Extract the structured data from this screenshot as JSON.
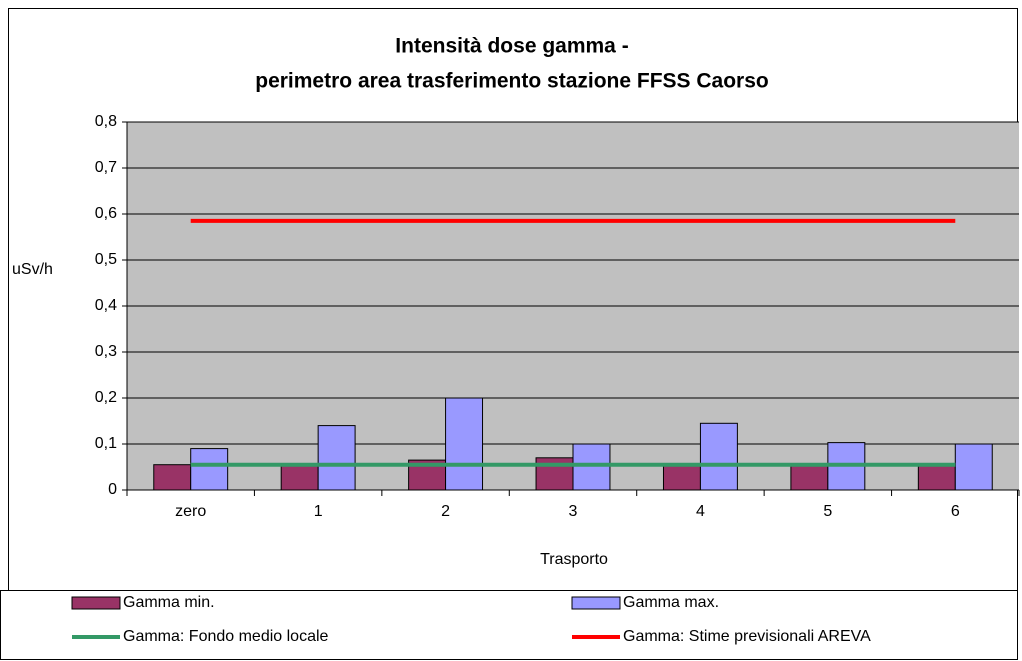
{
  "chart_data": {
    "type": "bar",
    "title": [
      "Intensità dose gamma -",
      "perimetro area trasferimento stazione FFSS Caorso"
    ],
    "x_label": "Trasporto",
    "y_label": "uSv/h",
    "categories": [
      "zero",
      "1",
      "2",
      "3",
      "4",
      "5",
      "6"
    ],
    "series": [
      {
        "name": "Gamma min.",
        "type": "bar",
        "color": "#993366",
        "values": [
          0.055,
          0.055,
          0.065,
          0.07,
          0.055,
          0.055,
          0.055
        ]
      },
      {
        "name": "Gamma max.",
        "type": "bar",
        "color": "#9999ff",
        "values": [
          0.09,
          0.14,
          0.2,
          0.1,
          0.145,
          0.103,
          0.1
        ]
      },
      {
        "name": "Gamma: Fondo medio locale",
        "type": "line",
        "color": "#339966",
        "values": [
          0.055,
          0.055,
          0.055,
          0.055,
          0.055,
          0.055,
          0.055
        ]
      },
      {
        "name": "Gamma: Stime previsionali AREVA",
        "type": "line",
        "color": "#ff0000",
        "values": [
          0.585,
          0.585,
          0.585,
          0.585,
          0.585,
          0.585,
          0.585
        ]
      }
    ],
    "ylim": [
      0,
      0.8
    ],
    "yticks": [
      0,
      {
        "value": 0.1,
        "label": "0,1"
      },
      {
        "value": 0.2,
        "label": "0,2"
      },
      {
        "value": 0.3,
        "label": "0,3"
      },
      {
        "value": 0.4,
        "label": "0,4"
      },
      {
        "value": 0.5,
        "label": "0,5"
      },
      {
        "value": 0.6,
        "label": "0,6"
      },
      {
        "value": 0.7,
        "label": "0,7"
      },
      {
        "value": 0.8,
        "label": "0,8"
      }
    ],
    "grid": true,
    "plot_background": "#c0c0c0",
    "legend": "bottom"
  }
}
